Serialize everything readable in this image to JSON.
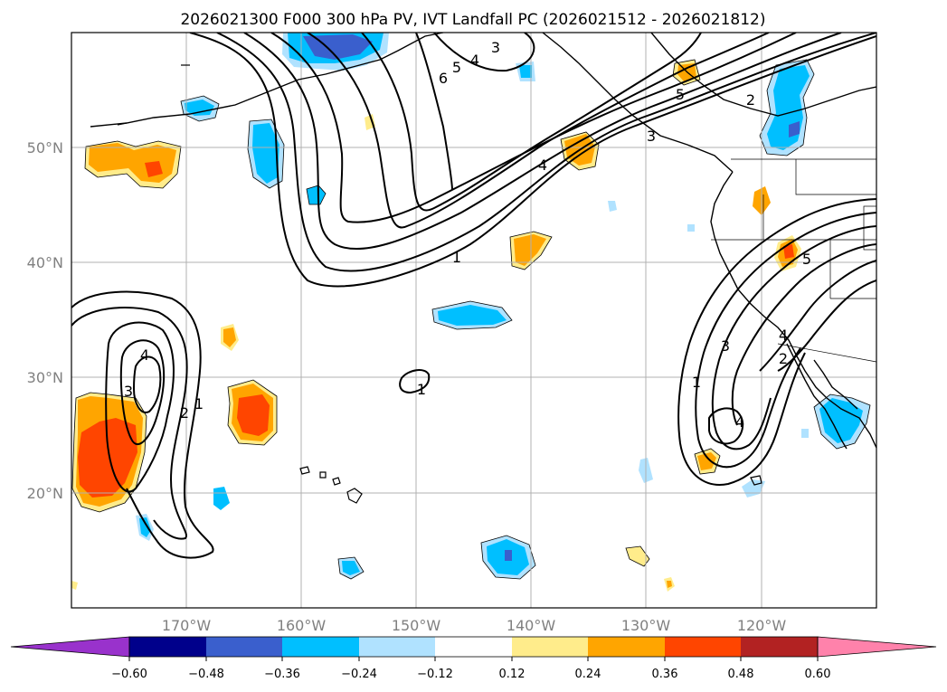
{
  "title": "2026021300 F000 300 hPa PV, IVT Landfall PC (2026021512 - 2026021812)",
  "colors": {
    "neg_060": "#9932cc",
    "neg_048_060": "#00008b",
    "neg_036_048": "#3a5fcd",
    "neg_024_036": "#00bfff",
    "neg_012_024": "#b0e2ff",
    "pos_012_024": "#ffec8b",
    "pos_024_036": "#ffa500",
    "pos_036_048": "#ff4500",
    "pos_048_060": "#b22222",
    "pos_060": "#ff82ab",
    "grid": "#b0b0b0",
    "contour": "#000000",
    "land": "#000000"
  },
  "map": {
    "projection": "PlateCarree",
    "lon_range": [
      -180,
      -110
    ],
    "lat_range": [
      10,
      60
    ],
    "lon_ticks": [
      {
        "lon": -170,
        "label": "170°W"
      },
      {
        "lon": -160,
        "label": "160°W"
      },
      {
        "lon": -150,
        "label": "150°W"
      },
      {
        "lon": -140,
        "label": "140°W"
      },
      {
        "lon": -130,
        "label": "130°W"
      },
      {
        "lon": -120,
        "label": "120°W"
      }
    ],
    "lat_ticks": [
      {
        "lat": 50,
        "label": "50°N"
      },
      {
        "lat": 40,
        "label": "40°N"
      },
      {
        "lat": 30,
        "label": "30°N"
      },
      {
        "lat": 20,
        "label": "20°N"
      }
    ],
    "grid": true
  },
  "colorbar": {
    "ticks": [
      "−0.60",
      "−0.48",
      "−0.36",
      "−0.24",
      "−0.12",
      "0.12",
      "0.24",
      "0.36",
      "0.48",
      "0.60"
    ],
    "extend": "both"
  },
  "contour_labels": {
    "c1": "1",
    "c2": "2",
    "c3": "3",
    "c4": "4",
    "c5": "5",
    "c6": "6"
  }
}
